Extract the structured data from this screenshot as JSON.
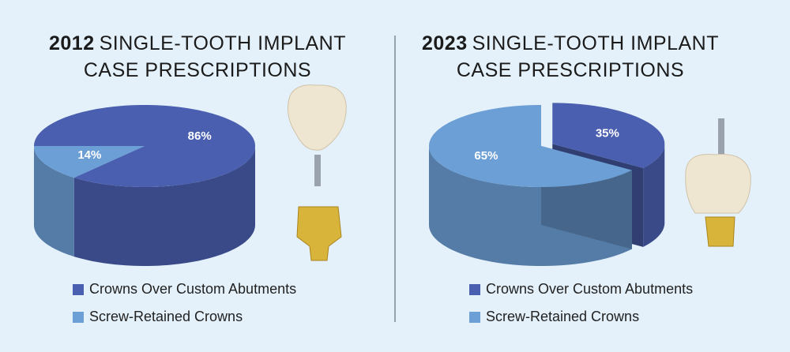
{
  "chart_data": [
    {
      "type": "pie",
      "title_year": "2012",
      "title": "SINGLE-TOOTH IMPLANT CASE PRESCRIPTIONS",
      "categories": [
        "Crowns Over Custom Abutments",
        "Screw-Retained Crowns"
      ],
      "values": [
        86,
        14
      ],
      "value_labels": [
        "86%",
        "14%"
      ],
      "colors": [
        "#4a5fb0",
        "#6c9fd6"
      ]
    },
    {
      "type": "pie",
      "title_year": "2023",
      "title": "SINGLE-TOOTH IMPLANT CASE PRESCRIPTIONS",
      "categories": [
        "Crowns Over Custom Abutments",
        "Screw-Retained Crowns"
      ],
      "values": [
        35,
        65
      ],
      "value_labels": [
        "35%",
        "65%"
      ],
      "colors": [
        "#4a5fb0",
        "#6c9fd6"
      ]
    }
  ]
}
